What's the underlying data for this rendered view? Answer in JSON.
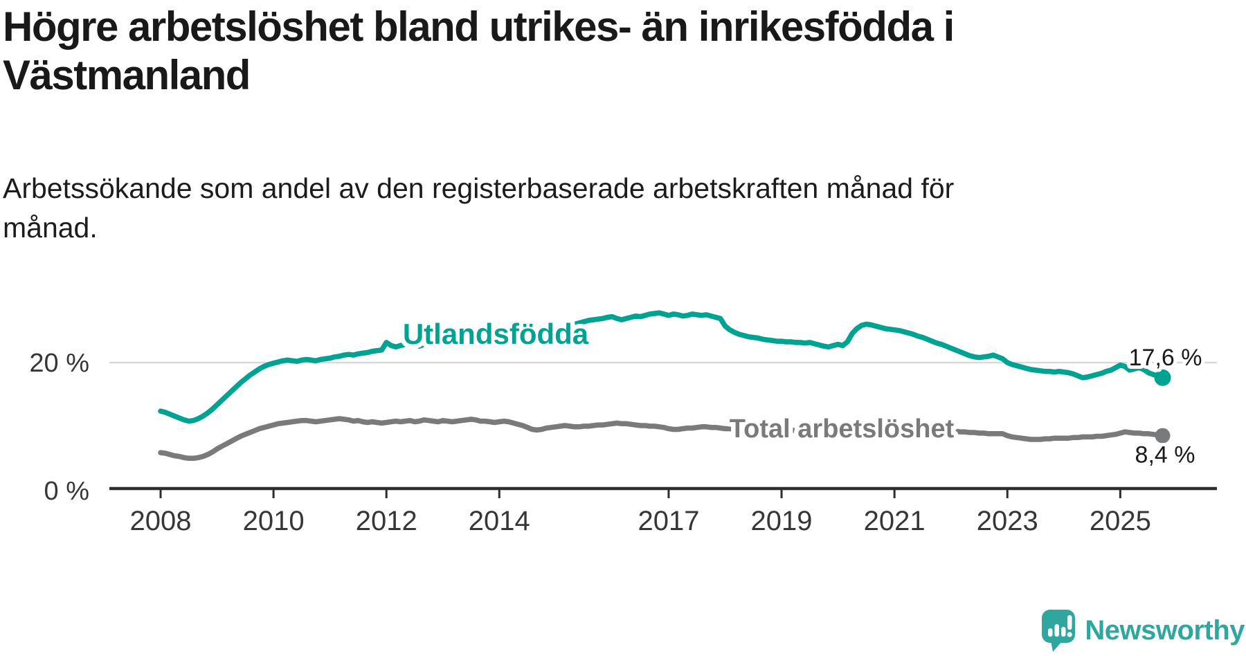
{
  "title": "Högre arbetslöshet bland utrikes- än inrikesfödda i Västmanland",
  "subtitle": "Arbetssökande som andel av den registerbaserade arbetskraften månad för månad.",
  "branding": {
    "name": "Newsworthy",
    "color": "#2fa79e",
    "icon": "newsworthy-speech-bubble-bar-chart-icon"
  },
  "colors": {
    "foreign_born_line": "#00a292",
    "total_line": "#797a7c",
    "gridline": "#d9d9d9",
    "axis": "#2d2d2d",
    "text": "#1a1a1a"
  },
  "chart_data": {
    "type": "line",
    "title": "Högre arbetslöshet bland utrikes- än inrikesfödda i Västmanland",
    "subtitle": "Arbetssökande som andel av den registerbaserade arbetskraften månad för månad.",
    "x_unit": "month",
    "x_start": "2008-01",
    "x_end": "2025-10",
    "x_ticks": [
      2008,
      2010,
      2012,
      2014,
      2017,
      2019,
      2021,
      2023,
      2025
    ],
    "x_tick_labels": [
      "2008",
      "2010",
      "2012",
      "2014",
      "2017",
      "2019",
      "2021",
      "2023",
      "2025"
    ],
    "y_tick_labels": [
      "0 %",
      "20 %"
    ],
    "ylim": [
      0,
      36
    ],
    "y_gridlines": [
      20
    ],
    "grid": "single light horizontal gridline at 20 %, bottom axis only",
    "legend_position": "inline labels next to lines",
    "series": [
      {
        "name": "Utlandsfödda",
        "color": "#00a292",
        "end_label": "17,6 %",
        "end_value": 17.6,
        "values": [
          12.3,
          12.1,
          11.8,
          11.5,
          11.2,
          10.9,
          10.7,
          10.8,
          11.1,
          11.5,
          12.0,
          12.6,
          13.3,
          14.0,
          14.7,
          15.4,
          16.1,
          16.8,
          17.4,
          18.0,
          18.5,
          19.0,
          19.4,
          19.7,
          19.9,
          20.1,
          20.3,
          20.4,
          20.3,
          20.2,
          20.4,
          20.5,
          20.4,
          20.3,
          20.5,
          20.6,
          20.7,
          20.9,
          21.0,
          21.2,
          21.3,
          21.2,
          21.4,
          21.5,
          21.6,
          21.8,
          21.9,
          22.0,
          23.2,
          22.7,
          22.5,
          22.7,
          22.9,
          23.1,
          22.8,
          22.6,
          22.9,
          23.1,
          23.3,
          23.2,
          23.1,
          23.3,
          23.5,
          23.2,
          23.0,
          23.3,
          23.5,
          23.7,
          23.6,
          23.7,
          23.8,
          24.0,
          24.1,
          24.3,
          24.4,
          24.2,
          24.4,
          24.6,
          24.3,
          24.1,
          24.4,
          24.7,
          24.9,
          25.1,
          25.3,
          25.5,
          25.7,
          25.9,
          26.1,
          26.3,
          26.5,
          26.7,
          26.8,
          26.9,
          27.0,
          27.2,
          27.3,
          27.0,
          26.8,
          27.0,
          27.2,
          27.4,
          27.3,
          27.5,
          27.7,
          27.8,
          27.9,
          27.7,
          27.5,
          27.7,
          27.6,
          27.4,
          27.5,
          27.7,
          27.6,
          27.5,
          27.6,
          27.4,
          27.2,
          27.0,
          25.8,
          25.2,
          24.8,
          24.5,
          24.3,
          24.1,
          24.0,
          23.9,
          23.7,
          23.6,
          23.5,
          23.4,
          23.4,
          23.3,
          23.3,
          23.2,
          23.2,
          23.1,
          23.2,
          23.0,
          22.8,
          22.6,
          22.5,
          22.7,
          22.9,
          22.7,
          23.3,
          24.6,
          25.4,
          25.9,
          26.1,
          26.0,
          25.8,
          25.6,
          25.4,
          25.3,
          25.2,
          25.1,
          24.9,
          24.7,
          24.5,
          24.2,
          24.0,
          23.7,
          23.4,
          23.1,
          22.9,
          22.6,
          22.3,
          22.0,
          21.7,
          21.4,
          21.1,
          20.9,
          20.8,
          20.9,
          21.0,
          21.2,
          20.9,
          20.6,
          20.0,
          19.7,
          19.5,
          19.3,
          19.1,
          18.9,
          18.8,
          18.7,
          18.6,
          18.6,
          18.5,
          18.6,
          18.5,
          18.4,
          18.2,
          17.9,
          17.6,
          17.7,
          17.9,
          18.1,
          18.3,
          18.6,
          18.8,
          19.2,
          19.6,
          19.4,
          18.8,
          19.0,
          19.2,
          18.9,
          18.4,
          18.1,
          17.9,
          17.6
        ]
      },
      {
        "name": "Total arbetslöshet",
        "color": "#797a7c",
        "end_label": "8,4 %",
        "end_value": 8.4,
        "values": [
          5.7,
          5.6,
          5.4,
          5.2,
          5.1,
          4.9,
          4.8,
          4.8,
          4.9,
          5.1,
          5.4,
          5.8,
          6.3,
          6.7,
          7.1,
          7.5,
          7.9,
          8.3,
          8.6,
          8.9,
          9.2,
          9.5,
          9.7,
          9.9,
          10.1,
          10.3,
          10.4,
          10.5,
          10.6,
          10.7,
          10.8,
          10.8,
          10.7,
          10.6,
          10.7,
          10.8,
          10.9,
          11.0,
          11.1,
          11.0,
          10.9,
          10.7,
          10.8,
          10.6,
          10.5,
          10.6,
          10.5,
          10.4,
          10.5,
          10.6,
          10.7,
          10.6,
          10.7,
          10.8,
          10.6,
          10.7,
          10.9,
          10.8,
          10.7,
          10.6,
          10.8,
          10.7,
          10.6,
          10.7,
          10.8,
          10.9,
          11.0,
          10.9,
          10.7,
          10.7,
          10.6,
          10.5,
          10.6,
          10.7,
          10.6,
          10.4,
          10.2,
          10.0,
          9.7,
          9.4,
          9.3,
          9.4,
          9.6,
          9.7,
          9.8,
          9.9,
          10.0,
          9.9,
          9.8,
          9.8,
          9.9,
          9.9,
          10.0,
          10.1,
          10.1,
          10.2,
          10.3,
          10.4,
          10.3,
          10.3,
          10.2,
          10.1,
          10.0,
          10.0,
          9.9,
          9.9,
          9.8,
          9.7,
          9.5,
          9.4,
          9.4,
          9.5,
          9.6,
          9.6,
          9.7,
          9.8,
          9.8,
          9.7,
          9.7,
          9.6,
          9.5,
          9.5,
          9.4,
          9.4,
          9.3,
          9.3,
          9.4,
          9.5,
          9.6,
          9.6,
          9.5,
          9.4,
          9.4,
          9.3,
          9.3,
          9.2,
          9.2,
          9.3,
          9.3,
          9.4,
          9.4,
          9.3,
          9.3,
          9.4,
          9.4,
          9.4,
          9.6,
          10.0,
          10.2,
          10.3,
          10.4,
          10.4,
          10.3,
          10.2,
          10.2,
          10.1,
          10.0,
          9.9,
          9.8,
          9.7,
          9.6,
          9.5,
          9.4,
          9.4,
          9.3,
          9.3,
          9.2,
          9.2,
          9.2,
          9.1,
          9.0,
          9.0,
          8.9,
          8.9,
          8.8,
          8.8,
          8.7,
          8.7,
          8.7,
          8.7,
          8.4,
          8.2,
          8.1,
          8.0,
          7.9,
          7.8,
          7.8,
          7.8,
          7.9,
          7.9,
          8.0,
          8.0,
          8.0,
          8.0,
          8.1,
          8.1,
          8.2,
          8.2,
          8.2,
          8.3,
          8.3,
          8.4,
          8.5,
          8.6,
          8.8,
          9.0,
          8.9,
          8.8,
          8.8,
          8.7,
          8.7,
          8.6,
          8.5,
          8.4
        ]
      }
    ]
  }
}
